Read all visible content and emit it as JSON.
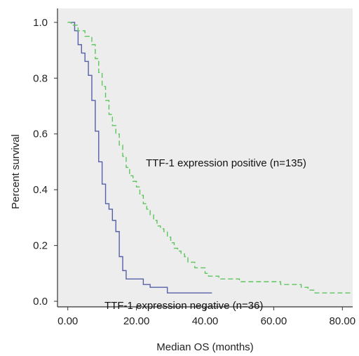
{
  "chart_data": {
    "type": "line",
    "title": "",
    "xlabel": "Median OS (months)",
    "ylabel": "Percent survival",
    "xlim": [
      -3,
      83
    ],
    "ylim": [
      -0.02,
      1.05
    ],
    "x_ticks": [
      "0.00",
      "20.00",
      "40.00",
      "60.00",
      "80.00"
    ],
    "x_tick_values": [
      0,
      20,
      40,
      60,
      80
    ],
    "y_ticks": [
      "0.0",
      "0.2",
      "0.4",
      "0.6",
      "0.8",
      "1.0"
    ],
    "y_tick_values": [
      0,
      0.2,
      0.4,
      0.6,
      0.8,
      1.0
    ],
    "grid": false,
    "colors": {
      "background": "#ededed",
      "negative": "#5560a8",
      "positive": "#5dc55d",
      "axis": "#333333"
    },
    "annotations": [
      {
        "text": "TTF-1 expression positive (n=135)",
        "series": "positive"
      },
      {
        "text": "TTF-1 expression negative (n=36)",
        "series": "negative"
      }
    ],
    "series": [
      {
        "id": "negative",
        "style": "solid",
        "x": [
          0,
          2,
          3,
          4,
          5,
          6,
          7,
          8,
          9,
          10,
          11,
          12,
          13,
          14,
          15,
          16,
          17,
          20,
          22,
          24,
          29,
          42
        ],
        "y": [
          1.0,
          0.97,
          0.92,
          0.89,
          0.86,
          0.81,
          0.72,
          0.61,
          0.5,
          0.42,
          0.35,
          0.33,
          0.29,
          0.25,
          0.16,
          0.11,
          0.08,
          0.08,
          0.06,
          0.05,
          0.03,
          0.03
        ]
      },
      {
        "id": "positive",
        "style": "dashed",
        "x": [
          0,
          1,
          3,
          5,
          7,
          8,
          9,
          10,
          11,
          12,
          13,
          14,
          15,
          16,
          17,
          18,
          19,
          20,
          21,
          22,
          23,
          24,
          25,
          26,
          27,
          28,
          29,
          30,
          31,
          32,
          33,
          34,
          35,
          37,
          40,
          41,
          42,
          44,
          46,
          48,
          50,
          52,
          54,
          56,
          58,
          60,
          62,
          64,
          66,
          68,
          70,
          72,
          83
        ],
        "y": [
          1.0,
          0.99,
          0.97,
          0.95,
          0.92,
          0.87,
          0.82,
          0.77,
          0.72,
          0.67,
          0.63,
          0.6,
          0.56,
          0.52,
          0.48,
          0.45,
          0.43,
          0.41,
          0.38,
          0.35,
          0.33,
          0.31,
          0.29,
          0.27,
          0.26,
          0.25,
          0.23,
          0.21,
          0.19,
          0.18,
          0.17,
          0.16,
          0.14,
          0.12,
          0.1,
          0.09,
          0.09,
          0.08,
          0.08,
          0.08,
          0.07,
          0.07,
          0.07,
          0.07,
          0.07,
          0.07,
          0.06,
          0.06,
          0.06,
          0.05,
          0.04,
          0.03,
          0.03
        ]
      }
    ]
  }
}
